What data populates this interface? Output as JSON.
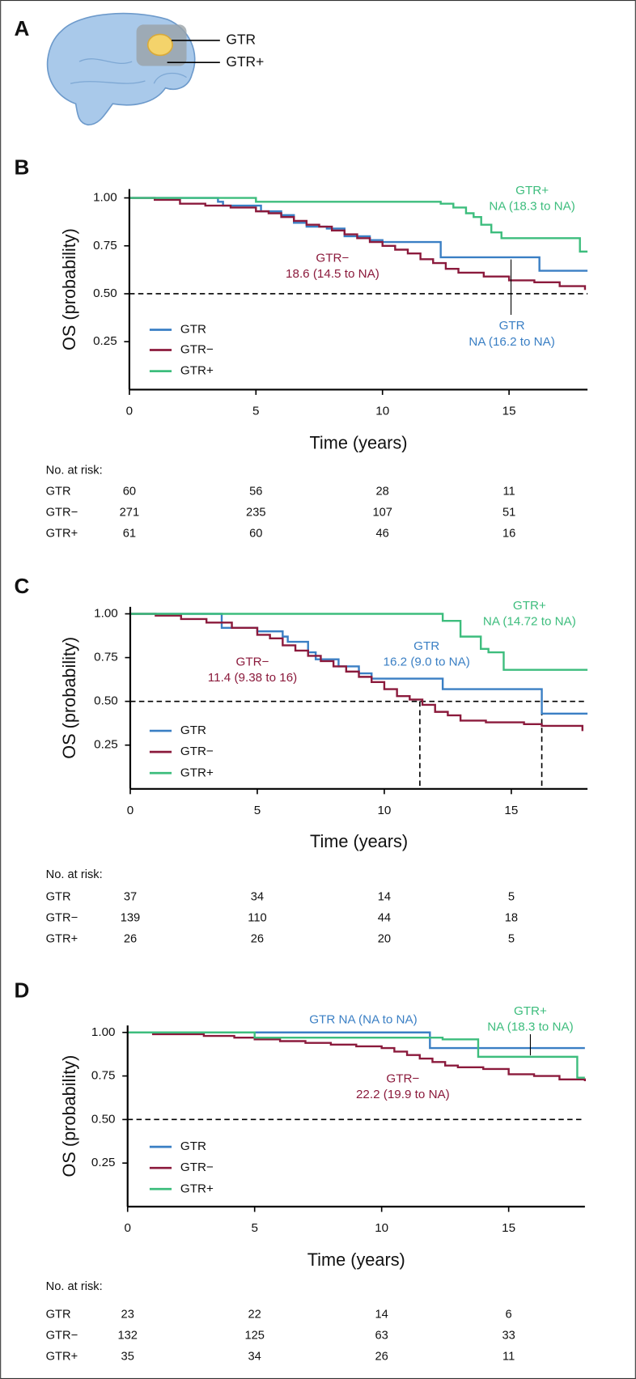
{
  "panel_a": {
    "letter": "A",
    "labels": [
      "GTR",
      "GTR+"
    ]
  },
  "chart_data": [
    {
      "type": "step",
      "panel": "B",
      "xlabel": "Time (years)",
      "ylabel": "OS (probability)",
      "xlim": [
        0,
        18.1
      ],
      "ylim": [
        0,
        1.046
      ],
      "xticks": [
        0,
        5,
        10,
        15
      ],
      "yticks": [
        {
          "value": 0.25,
          "label": "0.25"
        },
        {
          "value": 0.5,
          "label": "0.50"
        },
        {
          "value": 0.75,
          "label": "0.75"
        },
        {
          "value": 1,
          "label": "1.00"
        }
      ],
      "reference_y": 0.5,
      "series": [
        {
          "name": "GTR",
          "color": "#3a7fc4",
          "x": [
            0,
            3.5,
            3.7,
            5.2,
            6,
            6.5,
            7,
            7.8,
            8.5,
            9.5,
            10,
            12.3,
            16.2,
            18.1
          ],
          "values": [
            1,
            0.98,
            0.96,
            0.93,
            0.91,
            0.87,
            0.85,
            0.84,
            0.8,
            0.78,
            0.77,
            0.69,
            0.62,
            0.62
          ]
        },
        {
          "name": "GTR−",
          "color": "#8b1a3c",
          "x": [
            0,
            1,
            2,
            3,
            4,
            5,
            5.5,
            6,
            6.5,
            7,
            7.5,
            8,
            8.5,
            9,
            9.5,
            10,
            10.5,
            11,
            11.5,
            12,
            12.5,
            13,
            14,
            15,
            16,
            17,
            18
          ],
          "values": [
            1,
            0.99,
            0.97,
            0.96,
            0.95,
            0.93,
            0.92,
            0.9,
            0.88,
            0.86,
            0.85,
            0.83,
            0.81,
            0.79,
            0.77,
            0.75,
            0.73,
            0.71,
            0.68,
            0.66,
            0.63,
            0.61,
            0.59,
            0.57,
            0.56,
            0.54,
            0.52
          ]
        },
        {
          "name": "GTR+",
          "color": "#3dbd7d",
          "x": [
            0,
            5,
            12.3,
            12.8,
            13.3,
            13.6,
            13.9,
            14.3,
            14.7,
            17.8,
            18.1
          ],
          "values": [
            1,
            0.98,
            0.97,
            0.95,
            0.92,
            0.9,
            0.86,
            0.82,
            0.79,
            0.72,
            0.72
          ]
        }
      ],
      "annotations": [
        {
          "lines": [
            "GTR+",
            "NA (18.3 to NA)"
          ],
          "color": "#3dbd7d"
        },
        {
          "lines": [
            "GTR−",
            "18.6 (14.5 to NA)"
          ],
          "color": "#8b1a3c"
        },
        {
          "lines": [
            "GTR",
            "NA (16.2 to NA)"
          ],
          "color": "#3a7fc4"
        }
      ],
      "risk_table": {
        "title": "No. at risk:",
        "counts": [
          [
            60,
            56,
            28,
            11
          ],
          [
            271,
            235,
            107,
            51
          ],
          [
            61,
            60,
            46,
            16
          ]
        ]
      }
    },
    {
      "type": "step",
      "panel": "C",
      "xlabel": "Time (years)",
      "ylabel": "OS (probability)",
      "xlim": [
        0,
        18
      ],
      "ylim": [
        0,
        1.04
      ],
      "xticks": [
        0,
        5,
        10,
        15
      ],
      "yticks": [
        {
          "value": 0.25,
          "label": "0.25"
        },
        {
          "value": 0.5,
          "label": "0.50"
        },
        {
          "value": 0.75,
          "label": "0.75"
        },
        {
          "value": 1,
          "label": "1.00"
        }
      ],
      "reference_y": 0.5,
      "median_x": [
        11.4,
        16.2
      ],
      "series": [
        {
          "name": "GTR",
          "color": "#3a7fc4",
          "x": [
            0,
            3.6,
            5,
            6,
            6.2,
            7,
            7.3,
            8.2,
            9,
            9.5,
            12.3,
            16.2,
            18
          ],
          "values": [
            1,
            0.92,
            0.9,
            0.87,
            0.84,
            0.78,
            0.74,
            0.7,
            0.66,
            0.63,
            0.57,
            0.43,
            0.43
          ]
        },
        {
          "name": "GTR−",
          "color": "#8b1a3c",
          "x": [
            0,
            1,
            2,
            3,
            4,
            5,
            5.5,
            6,
            6.5,
            7,
            7.5,
            8,
            8.5,
            9,
            9.5,
            10,
            10.5,
            11,
            11.5,
            12,
            12.5,
            13,
            14,
            15.5,
            16.2,
            17.8
          ],
          "values": [
            1,
            0.99,
            0.97,
            0.95,
            0.92,
            0.88,
            0.86,
            0.82,
            0.79,
            0.76,
            0.73,
            0.7,
            0.67,
            0.64,
            0.61,
            0.57,
            0.53,
            0.51,
            0.48,
            0.44,
            0.42,
            0.39,
            0.38,
            0.37,
            0.36,
            0.33
          ]
        },
        {
          "name": "GTR+",
          "color": "#3dbd7d",
          "x": [
            0,
            12.3,
            13,
            13.8,
            14.1,
            14.7,
            18
          ],
          "values": [
            1,
            0.96,
            0.87,
            0.8,
            0.78,
            0.68,
            0.68
          ]
        }
      ],
      "annotations": [
        {
          "lines": [
            "GTR+",
            "NA (14.72 to NA)"
          ],
          "color": "#3dbd7d"
        },
        {
          "lines": [
            "GTR",
            "16.2 (9.0 to NA)"
          ],
          "color": "#3a7fc4"
        },
        {
          "lines": [
            "GTR−",
            "11.4 (9.38 to 16)"
          ],
          "color": "#8b1a3c"
        }
      ],
      "risk_table": {
        "title": "No. at risk:",
        "counts": [
          [
            37,
            34,
            14,
            5
          ],
          [
            139,
            110,
            44,
            18
          ],
          [
            26,
            26,
            20,
            5
          ]
        ]
      }
    },
    {
      "type": "step",
      "panel": "D",
      "xlabel": "Time (years)",
      "ylabel": "OS (probability)",
      "xlim": [
        0,
        18
      ],
      "ylim": [
        0,
        1.04
      ],
      "xticks": [
        0,
        5,
        10,
        15
      ],
      "yticks": [
        {
          "value": 0.25,
          "label": "0.25"
        },
        {
          "value": 0.5,
          "label": "0.50"
        },
        {
          "value": 0.75,
          "label": "0.75"
        },
        {
          "value": 1,
          "label": "1.00"
        }
      ],
      "reference_y": 0.5,
      "series": [
        {
          "name": "GTR",
          "color": "#3a7fc4",
          "x": [
            0,
            11.9,
            18
          ],
          "values": [
            1,
            0.91,
            0.91
          ]
        },
        {
          "name": "GTR−",
          "color": "#8b1a3c",
          "x": [
            0,
            1,
            3,
            4.2,
            5,
            6,
            7,
            8,
            9,
            10,
            10.5,
            11,
            11.5,
            12,
            12.5,
            13,
            14,
            15,
            16,
            17,
            18
          ],
          "values": [
            1,
            0.99,
            0.98,
            0.97,
            0.96,
            0.95,
            0.94,
            0.93,
            0.92,
            0.91,
            0.89,
            0.87,
            0.85,
            0.83,
            0.81,
            0.8,
            0.79,
            0.76,
            0.75,
            0.73,
            0.72
          ]
        },
        {
          "name": "GTR+",
          "color": "#3dbd7d",
          "x": [
            0,
            5,
            12.4,
            13.8,
            17.7,
            18
          ],
          "values": [
            1,
            0.97,
            0.96,
            0.86,
            0.74,
            0.74
          ]
        }
      ],
      "annotations": [
        {
          "lines": [
            "GTR NA (NA to NA)"
          ],
          "color": "#3a7fc4"
        },
        {
          "lines": [
            "GTR+",
            "NA (18.3 to NA)"
          ],
          "color": "#3dbd7d"
        },
        {
          "lines": [
            "GTR−",
            "22.2 (19.9 to NA)"
          ],
          "color": "#8b1a3c"
        }
      ],
      "risk_table": {
        "title": "No. at risk:",
        "counts": [
          [
            23,
            22,
            14,
            6
          ],
          [
            132,
            125,
            63,
            33
          ],
          [
            35,
            34,
            26,
            11
          ]
        ]
      }
    }
  ]
}
